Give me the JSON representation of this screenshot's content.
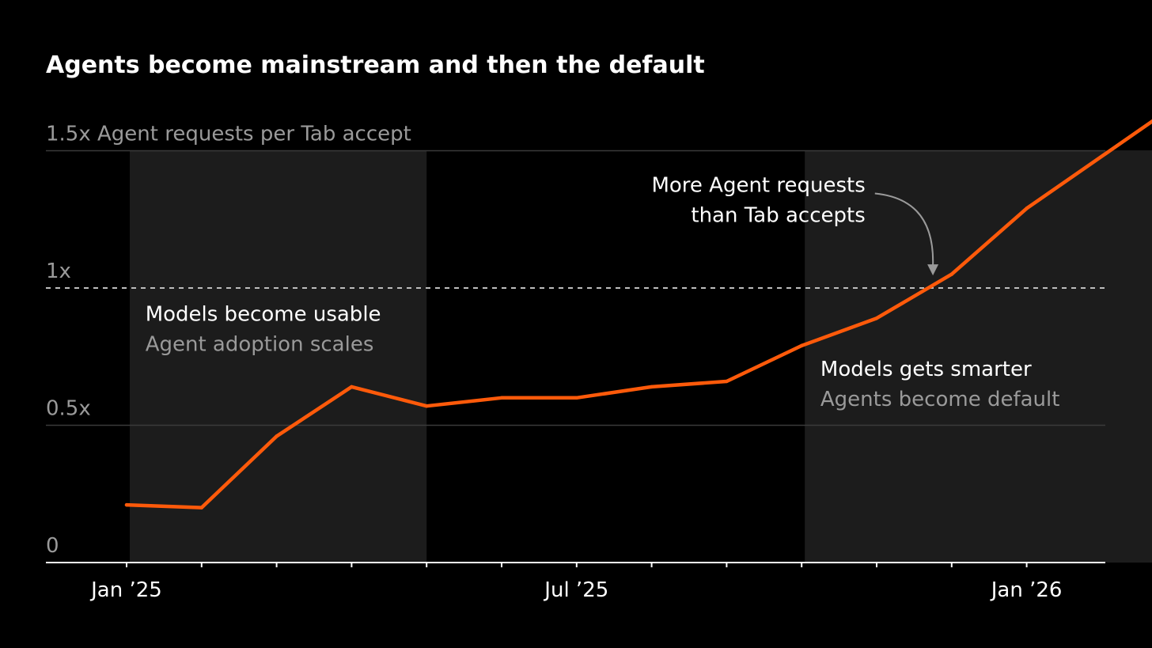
{
  "colors": {
    "background": "#000000",
    "line": "#ff5a0a",
    "shade": "#1c1c1c",
    "grid": "#3a3a3a",
    "axis": "#ffffff",
    "muted_text": "#9a9a9a",
    "arrow": "#9a9a9a"
  },
  "chart_data": {
    "type": "line",
    "title": "Agents become mainstream and then the default",
    "ylabel": "Agent requests per Tab accept",
    "ylim": [
      0,
      1.5
    ],
    "yticks": [
      {
        "value": 0,
        "label": "0"
      },
      {
        "value": 0.5,
        "label": "0.5x"
      },
      {
        "value": 1,
        "label": "1x"
      },
      {
        "value": 1.5,
        "label": "1.5x"
      }
    ],
    "top_tick_suffix": " Agent requests per Tab accept",
    "reference_line": {
      "value": 1,
      "style": "dashed"
    },
    "x_month_index_range": [
      0,
      13.9
    ],
    "xtick_labels": [
      {
        "month_index": 0,
        "label": "Jan ’25"
      },
      {
        "month_index": 6,
        "label": "Jul ’25"
      },
      {
        "month_index": 12,
        "label": "Jan ’26"
      }
    ],
    "minor_tick_month_indices": [
      0,
      1,
      2,
      3,
      4,
      5,
      6,
      7,
      8,
      9,
      10,
      11,
      12,
      13.9
    ],
    "series": [
      {
        "x": [
          0,
          1,
          2,
          3,
          4,
          5,
          6,
          7,
          8,
          9,
          10,
          11,
          12,
          13.9
        ],
        "y": [
          0.21,
          0.2,
          0.46,
          0.64,
          0.57,
          0.6,
          0.6,
          0.64,
          0.66,
          0.79,
          0.89,
          1.05,
          1.29,
          1.65
        ]
      }
    ],
    "shaded_regions": [
      {
        "from": 0,
        "to": 4
      },
      {
        "from": 9,
        "to": 13.9
      }
    ],
    "annotations": [
      {
        "id": "usable",
        "lines": [
          "Models become usable",
          "Agent adoption scales"
        ],
        "anchor_month": 0.25,
        "anchor_value": 0.88
      },
      {
        "id": "smarter",
        "lines": [
          "Models gets smarter",
          "Agents become default"
        ],
        "anchor_month": 9.25,
        "anchor_value": 0.68
      },
      {
        "id": "crossover",
        "lines": [
          "More Agent requests",
          "than Tab accepts"
        ],
        "anchor_month": 9.85,
        "anchor_value": 1.35,
        "align": "right",
        "arrow_to": {
          "month": 10.75,
          "value": 1.04
        }
      }
    ]
  }
}
